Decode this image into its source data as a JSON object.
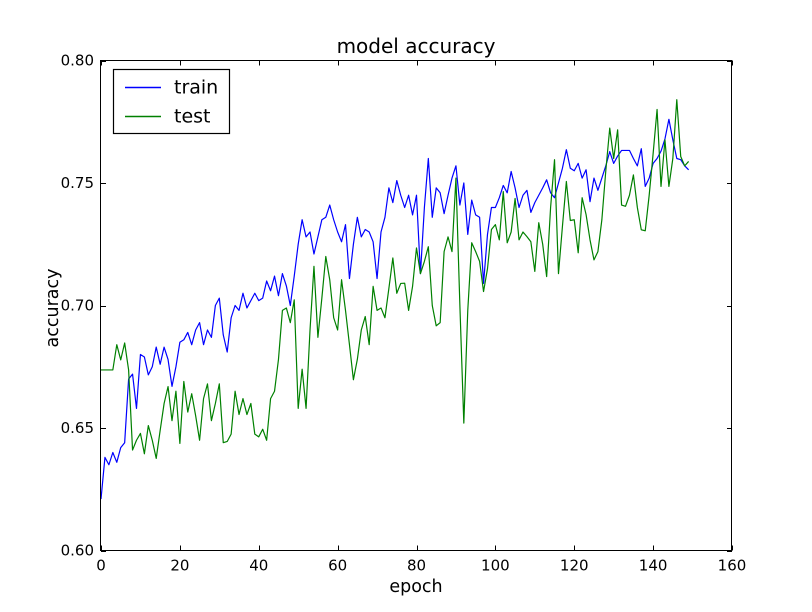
{
  "chart_data": {
    "type": "line",
    "title": "model accuracy",
    "xlabel": "epoch",
    "ylabel": "accuracy",
    "xlim": [
      0,
      160
    ],
    "ylim": [
      0.6,
      0.8
    ],
    "xticks": [
      0,
      20,
      40,
      60,
      80,
      100,
      120,
      140,
      160
    ],
    "yticks": [
      0.6,
      0.65,
      0.7,
      0.75,
      0.8
    ],
    "ytick_labels": [
      "0.60",
      "0.65",
      "0.70",
      "0.75",
      "0.80"
    ],
    "grid": false,
    "legend": {
      "position": "upper left",
      "entries": [
        {
          "label": "train",
          "color": "#0000ff"
        },
        {
          "label": "test",
          "color": "#008000"
        }
      ]
    },
    "x_start": 0,
    "x_step": 1,
    "series": [
      {
        "name": "train",
        "color": "#0000ff",
        "values": [
          0.621,
          0.638,
          0.635,
          0.64,
          0.636,
          0.642,
          0.644,
          0.67,
          0.672,
          0.658,
          0.68,
          0.679,
          0.6717,
          0.675,
          0.683,
          0.676,
          0.683,
          0.678,
          0.667,
          0.675,
          0.685,
          0.686,
          0.689,
          0.684,
          0.69,
          0.693,
          0.684,
          0.69,
          0.687,
          0.7,
          0.703,
          0.688,
          0.681,
          0.695,
          0.7,
          0.698,
          0.705,
          0.699,
          0.702,
          0.705,
          0.702,
          0.703,
          0.71,
          0.706,
          0.712,
          0.704,
          0.713,
          0.708,
          0.7,
          0.712,
          0.725,
          0.735,
          0.728,
          0.73,
          0.721,
          0.728,
          0.735,
          0.736,
          0.741,
          0.735,
          0.73,
          0.726,
          0.733,
          0.711,
          0.725,
          0.736,
          0.728,
          0.731,
          0.73,
          0.726,
          0.711,
          0.73,
          0.736,
          0.748,
          0.742,
          0.751,
          0.745,
          0.74,
          0.745,
          0.737,
          0.745,
          0.713,
          0.74,
          0.76,
          0.736,
          0.748,
          0.746,
          0.7375,
          0.745,
          0.752,
          0.757,
          0.741,
          0.75,
          0.729,
          0.743,
          0.737,
          0.736,
          0.709,
          0.729,
          0.74,
          0.74,
          0.744,
          0.749,
          0.746,
          0.7547,
          0.748,
          0.74,
          0.745,
          0.747,
          0.738,
          0.742,
          0.745,
          0.748,
          0.7513,
          0.746,
          0.744,
          0.75,
          0.756,
          0.7636,
          0.756,
          0.755,
          0.758,
          0.752,
          0.7554,
          0.7424,
          0.752,
          0.747,
          0.752,
          0.757,
          0.7628,
          0.758,
          0.761,
          0.7633,
          0.7633,
          0.7633,
          0.76,
          0.757,
          0.764,
          0.7486,
          0.752,
          0.758,
          0.76,
          0.763,
          0.768,
          0.776,
          0.7676,
          0.76,
          0.7595,
          0.757,
          0.7554
        ]
      },
      {
        "name": "test",
        "color": "#008000",
        "values": [
          0.6737,
          0.6737,
          0.6737,
          0.6737,
          0.684,
          0.6778,
          0.6847,
          0.6737,
          0.641,
          0.645,
          0.6478,
          0.6395,
          0.651,
          0.645,
          0.6376,
          0.649,
          0.66,
          0.6669,
          0.653,
          0.665,
          0.6437,
          0.669,
          0.6565,
          0.664,
          0.655,
          0.645,
          0.662,
          0.668,
          0.653,
          0.66,
          0.668,
          0.644,
          0.6445,
          0.6475,
          0.665,
          0.6555,
          0.662,
          0.6555,
          0.66,
          0.6475,
          0.6464,
          0.6495,
          0.645,
          0.662,
          0.665,
          0.678,
          0.698,
          0.699,
          0.693,
          0.7023,
          0.658,
          0.674,
          0.658,
          0.69,
          0.716,
          0.687,
          0.703,
          0.72,
          0.7105,
          0.695,
          0.69,
          0.7105,
          0.698,
          0.684,
          0.6697,
          0.678,
          0.69,
          0.6955,
          0.684,
          0.7078,
          0.698,
          0.699,
          0.695,
          0.707,
          0.7194,
          0.705,
          0.709,
          0.7091,
          0.698,
          0.7078,
          0.7235,
          0.713,
          0.718,
          0.724,
          0.7,
          0.6917,
          0.693,
          0.722,
          0.728,
          0.722,
          0.752,
          0.7,
          0.652,
          0.698,
          0.7256,
          0.722,
          0.718,
          0.7057,
          0.715,
          0.731,
          0.733,
          0.7268,
          0.7465,
          0.7256,
          0.73,
          0.7437,
          0.7268,
          0.73,
          0.7281,
          0.726,
          0.7139,
          0.7338,
          0.725,
          0.7118,
          0.74,
          0.7595,
          0.713,
          0.7322,
          0.7506,
          0.7347,
          0.735,
          0.7215,
          0.744,
          0.7371,
          0.7268,
          0.7186,
          0.722,
          0.735,
          0.755,
          0.7724,
          0.76,
          0.7717,
          0.741,
          0.7405,
          0.745,
          0.7533,
          0.74,
          0.7309,
          0.7305,
          0.745,
          0.762,
          0.78,
          0.7486,
          0.7676,
          0.7486,
          0.76,
          0.784,
          0.7608,
          0.757,
          0.7588
        ]
      }
    ]
  },
  "colors": {
    "axis": "#000000",
    "background": "#ffffff"
  }
}
